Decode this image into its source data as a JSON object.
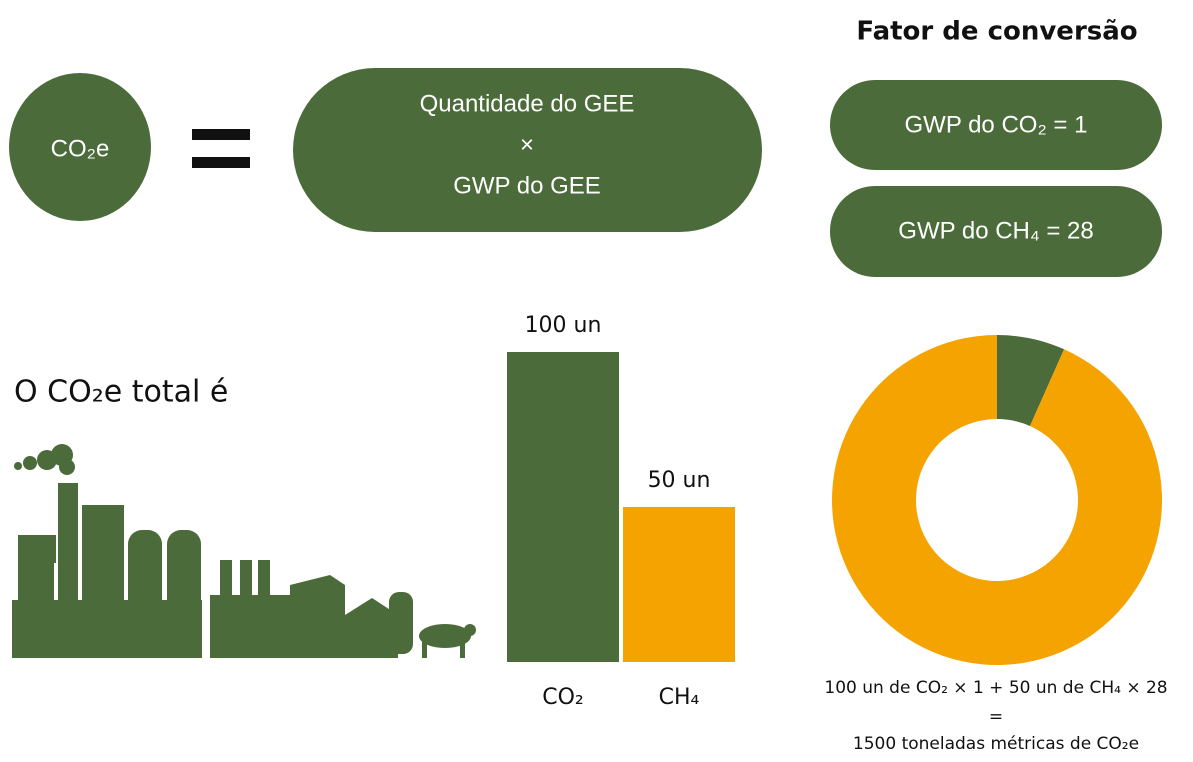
{
  "header": {
    "title": "Fator de conversão"
  },
  "equation": {
    "left": "CO₂e",
    "right_top": "Quantidade do GEE",
    "operator": "×",
    "right_bottom": "GWP do GEE"
  },
  "factors": [
    "GWP do CO₂ = 1",
    "GWP do CH₄ = 28"
  ],
  "total_label": "O CO₂e total é",
  "formula": {
    "line1": "100 un de CO₂ × 1 + 50 un de CH₄ × 28",
    "equals": "=",
    "line2": "1500 toneladas métricas de CO₂e"
  },
  "chart_data": [
    {
      "type": "bar",
      "categories": [
        "CO₂",
        "CH₄"
      ],
      "values": [
        100,
        50
      ],
      "value_labels": [
        "100 un",
        "50 un"
      ],
      "colors": [
        "#4b6b3a",
        "#f5a300"
      ],
      "ylim": [
        0,
        100
      ]
    },
    {
      "type": "pie",
      "values": [
        100,
        1400
      ],
      "colors": [
        "#4b6b3a",
        "#f5a300"
      ],
      "donut": true
    }
  ]
}
